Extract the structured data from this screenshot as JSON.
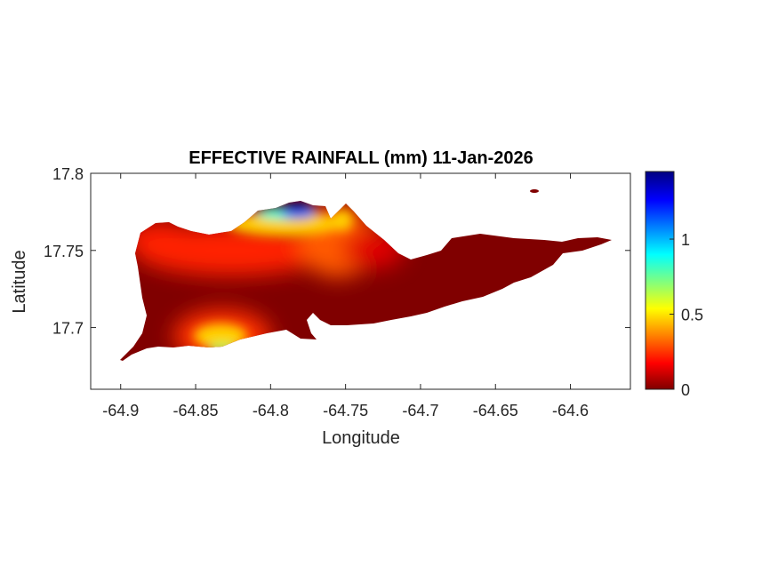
{
  "chart_data": {
    "type": "heatmap",
    "title": "EFFECTIVE RAINFALL (mm) 11-Jan-2026",
    "xlabel": "Longitude",
    "ylabel": "Latitude",
    "xlim": [
      -64.92,
      -64.56
    ],
    "ylim": [
      17.66,
      17.8
    ],
    "xticks": [
      -64.9,
      -64.85,
      -64.8,
      -64.75,
      -64.7,
      -64.65,
      -64.6
    ],
    "xtick_labels": [
      "-64.9",
      "-64.85",
      "-64.8",
      "-64.75",
      "-64.7",
      "-64.65",
      "-64.6"
    ],
    "yticks": [
      17.7,
      17.75,
      17.8
    ],
    "ytick_labels": [
      "17.7",
      "17.75",
      "17.8"
    ],
    "colorbar": {
      "colormap": "jet",
      "range": [
        0,
        1.45
      ],
      "ticks": [
        0,
        0.5,
        1
      ],
      "tick_labels": [
        "0",
        "0.5",
        "1"
      ]
    },
    "grid": false,
    "hotspots": [
      {
        "lon": -64.78,
        "lat": 17.777,
        "value": 1.45
      },
      {
        "lon": -64.81,
        "lat": 17.77,
        "value": 1.0
      },
      {
        "lon": -64.765,
        "lat": 17.765,
        "value": 0.55
      },
      {
        "lon": -64.75,
        "lat": 17.775,
        "value": 0.4
      },
      {
        "lon": -64.83,
        "lat": 17.693,
        "value": 0.55
      },
      {
        "lon": -64.83,
        "lat": 17.682,
        "value": 0.75
      }
    ],
    "colors": {
      "background_value": "#800000",
      "axes": "#262626"
    }
  }
}
